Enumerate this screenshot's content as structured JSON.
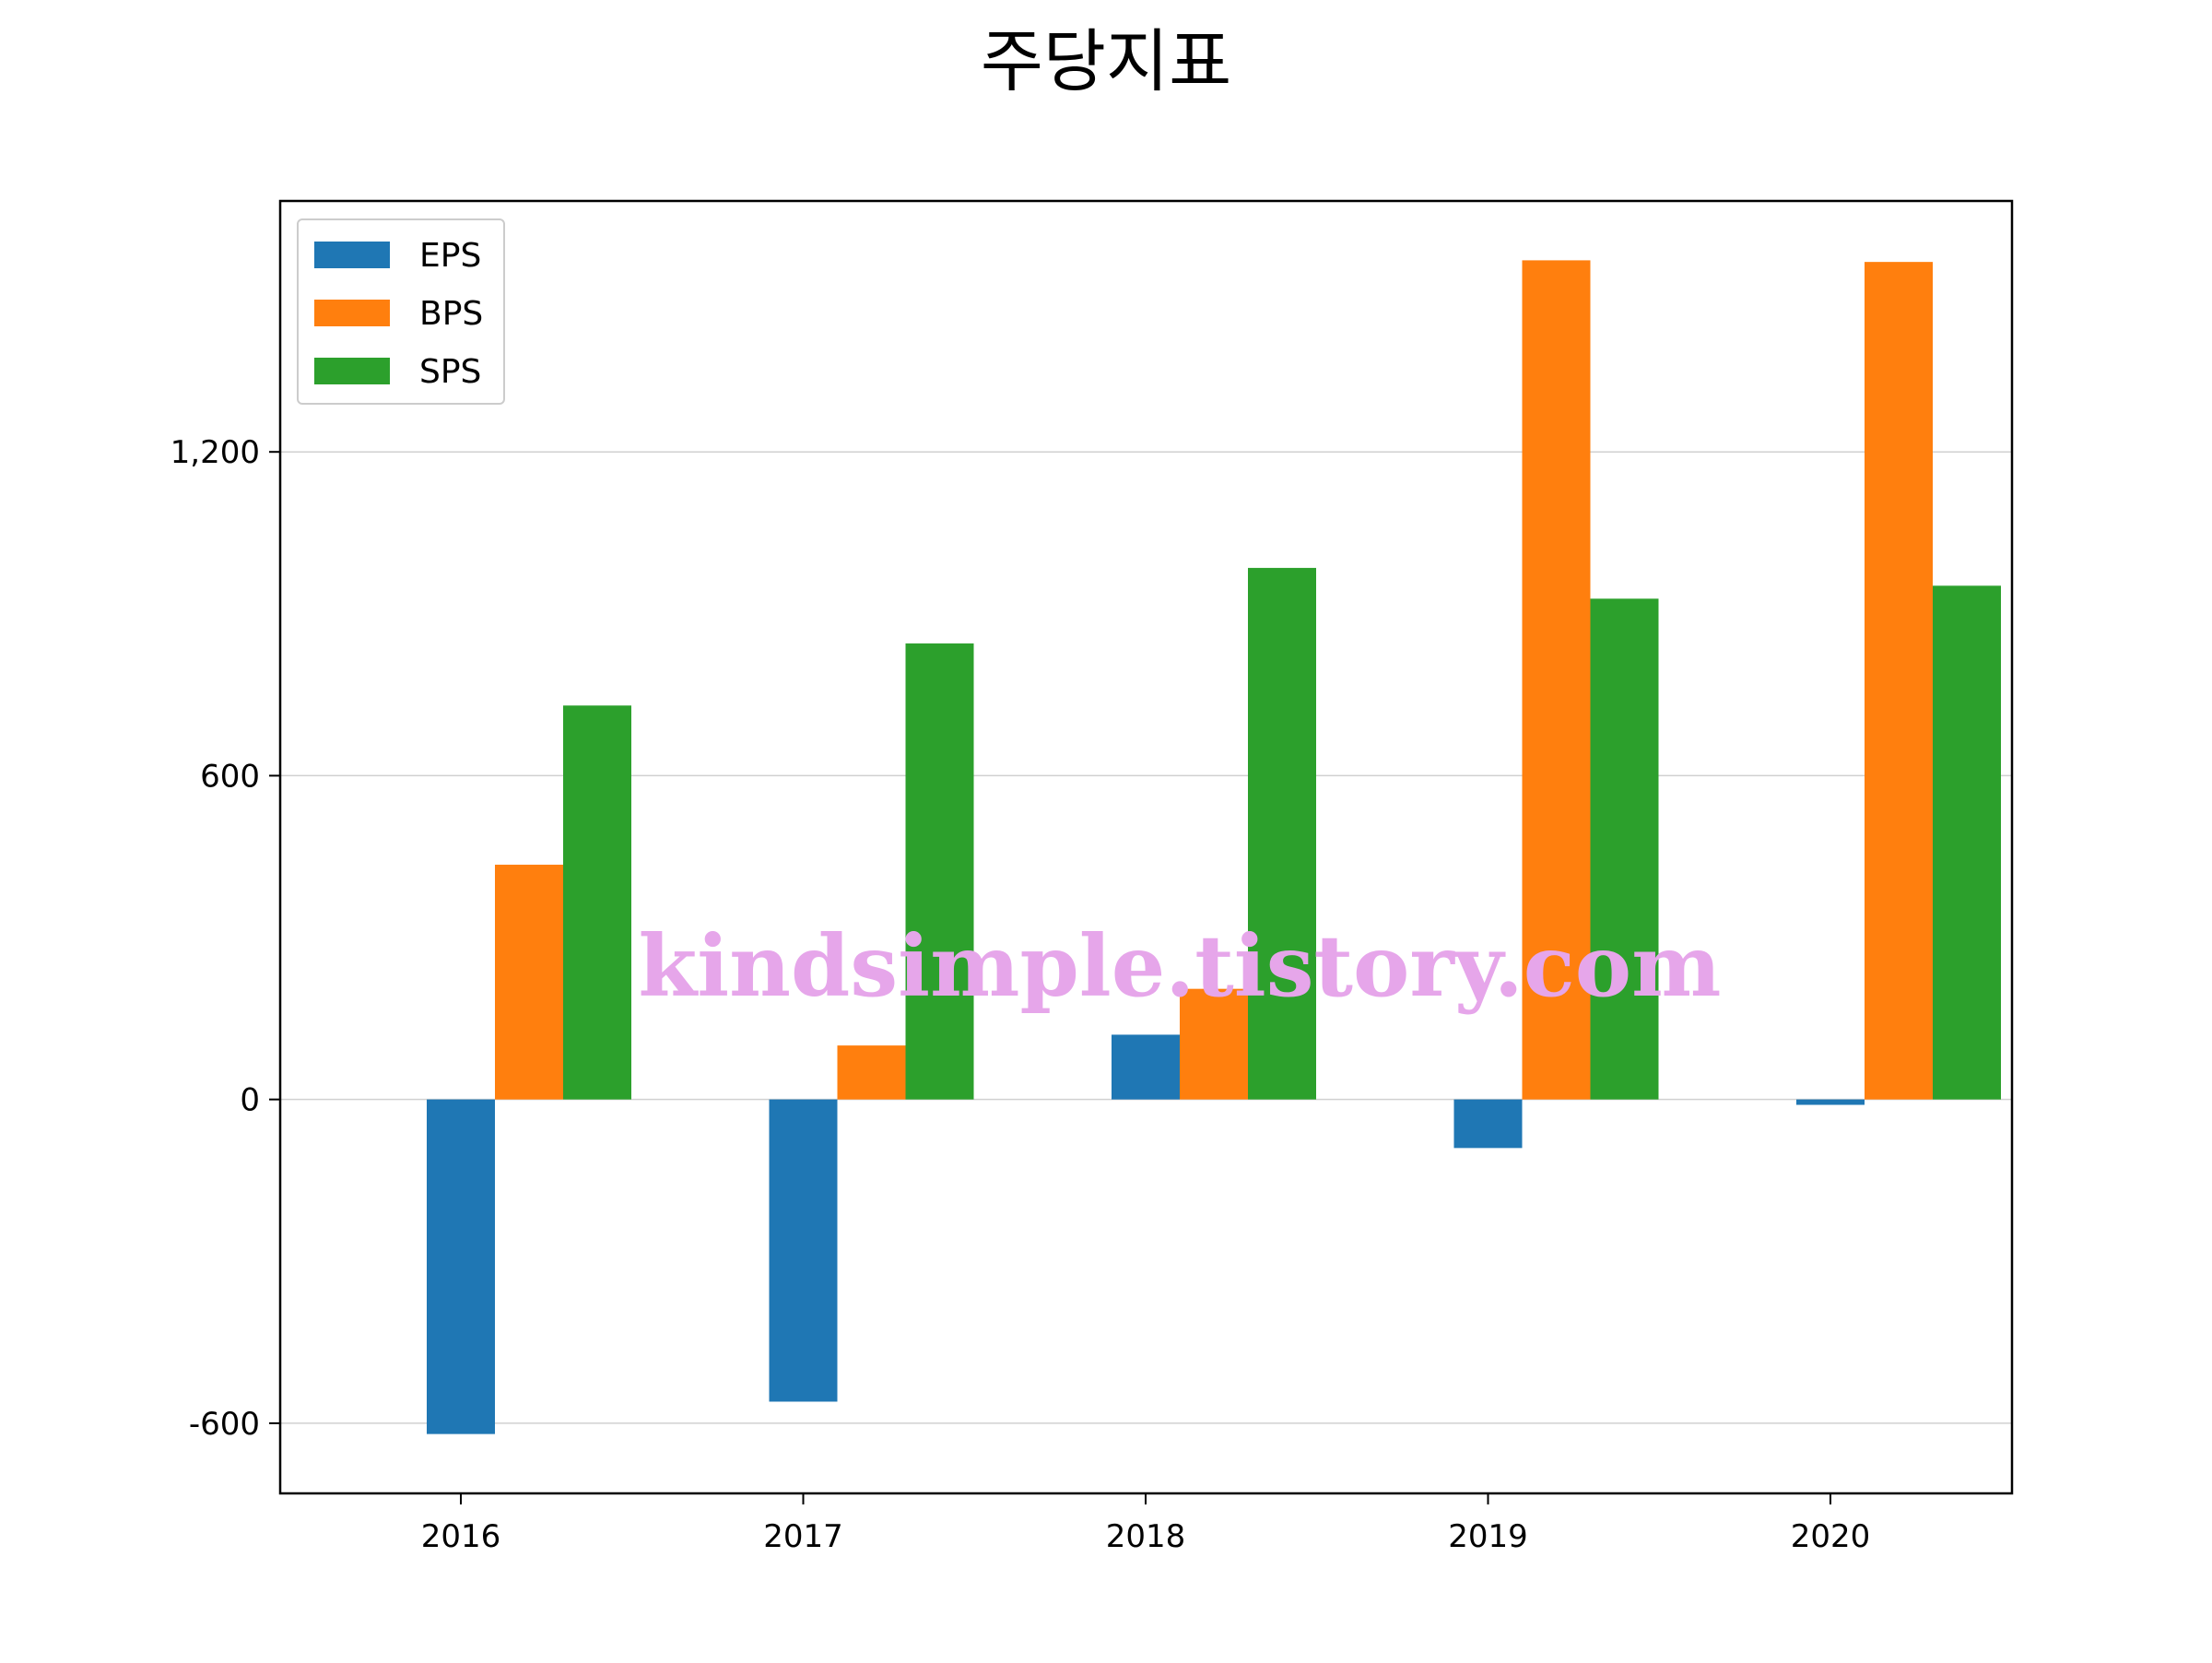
{
  "chart_data": {
    "type": "bar",
    "title": "주당지표",
    "xlabel": "",
    "ylabel": "",
    "categories": [
      "2016",
      "2017",
      "2018",
      "2019",
      "2020"
    ],
    "series": [
      {
        "name": "EPS",
        "color": "#1f77b4",
        "values": [
          -620,
          -560,
          120,
          -90,
          -10
        ]
      },
      {
        "name": "BPS",
        "color": "#ff7f0e",
        "values": [
          435,
          100,
          205,
          1555,
          1552
        ]
      },
      {
        "name": "SPS",
        "color": "#2ca02c",
        "values": [
          730,
          845,
          985,
          928,
          952
        ]
      }
    ],
    "ylim": [
      -730,
      1665
    ],
    "yticks": [
      -600,
      0,
      600,
      1200
    ],
    "ytick_labels": [
      "-600",
      "0",
      "600",
      "1,200"
    ],
    "grid": true,
    "legend_position": "upper-left"
  },
  "watermark": {
    "text": "kindsimple.tistory.com",
    "color": "#e6a6ea"
  }
}
